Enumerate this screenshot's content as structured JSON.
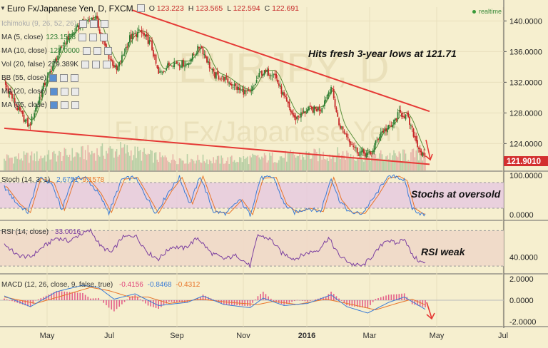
{
  "header": {
    "title": "Euro Fx/Japanese Yen, D, FXCM",
    "ohlc": [
      {
        "k": "O",
        "v": "123.223"
      },
      {
        "k": "H",
        "v": "123.565"
      },
      {
        "k": "L",
        "v": "122.594"
      },
      {
        "k": "C",
        "v": "122.691"
      }
    ],
    "realtime_label": "realtime"
  },
  "legend": [
    {
      "label": "Ichimoku (9, 26, 52, 26)",
      "value": ""
    },
    {
      "label": "MA (5, close)",
      "value": "123.1558"
    },
    {
      "label": "MA (10, close)",
      "value": "123.0000"
    },
    {
      "label": "Vol (20, false)",
      "value": "279.389K"
    },
    {
      "label": "BB (55, close)",
      "value": ""
    },
    {
      "label": "MA (20, close)",
      "value": ""
    },
    {
      "label": "MA (55, close)",
      "value": ""
    }
  ],
  "watermark": [
    "EURJPY, D",
    "Euro Fx/Japanese Yen"
  ],
  "colors": {
    "bg": "#f6efcf",
    "up": "#2e7d32",
    "down": "#c62828",
    "trend": "#e53935",
    "stoch": "#3a7bd5",
    "rsi": "#7b3fa0",
    "price_tag": "#d32f2f",
    "ma": "#5a8f3a"
  },
  "chart_data": [
    {
      "type": "candlestick",
      "title": "Euro Fx/Japanese Yen, D, FXCM",
      "x_labels": [
        "May",
        "Jul",
        "Sep",
        "Nov",
        "2016",
        "Mar",
        "May",
        "Jul"
      ],
      "y_ticks": [
        "140.0000",
        "136.0000",
        "132.0000",
        "128.0000",
        "124.0000"
      ],
      "ylim": [
        120.5,
        141.8
      ],
      "last_price": "121.9010",
      "points": [
        {
          "t": 0,
          "v": 132.0
        },
        {
          "t": 10,
          "v": 128.6
        },
        {
          "t": 19,
          "v": 126.2
        },
        {
          "t": 30,
          "v": 131.5
        },
        {
          "t": 45,
          "v": 137.0
        },
        {
          "t": 60,
          "v": 139.8
        },
        {
          "t": 70,
          "v": 140.4
        },
        {
          "t": 78,
          "v": 136.0
        },
        {
          "t": 86,
          "v": 133.5
        },
        {
          "t": 96,
          "v": 137.8
        },
        {
          "t": 104,
          "v": 138.6
        },
        {
          "t": 112,
          "v": 137.0
        },
        {
          "t": 118,
          "v": 133.0
        },
        {
          "t": 128,
          "v": 134.6
        },
        {
          "t": 140,
          "v": 134.4
        },
        {
          "t": 150,
          "v": 136.8
        },
        {
          "t": 160,
          "v": 133.0
        },
        {
          "t": 168,
          "v": 132.5
        },
        {
          "t": 180,
          "v": 131.0
        },
        {
          "t": 188,
          "v": 130.5
        },
        {
          "t": 196,
          "v": 133.2
        },
        {
          "t": 206,
          "v": 133.3
        },
        {
          "t": 214,
          "v": 130.0
        },
        {
          "t": 222,
          "v": 127.2
        },
        {
          "t": 232,
          "v": 128.4
        },
        {
          "t": 242,
          "v": 128.5
        },
        {
          "t": 250,
          "v": 131.5
        },
        {
          "t": 256,
          "v": 126.5
        },
        {
          "t": 262,
          "v": 125.0
        },
        {
          "t": 270,
          "v": 123.0
        },
        {
          "t": 280,
          "v": 122.5
        },
        {
          "t": 288,
          "v": 125.5
        },
        {
          "t": 296,
          "v": 126.2
        },
        {
          "t": 302,
          "v": 128.0
        },
        {
          "t": 308,
          "v": 127.5
        },
        {
          "t": 314,
          "v": 124.8
        },
        {
          "t": 318,
          "v": 123.0
        },
        {
          "t": 322,
          "v": 121.9
        }
      ],
      "volume_profile": [
        {
          "t": 0,
          "v": 0.3
        },
        {
          "t": 35,
          "v": 0.35
        },
        {
          "t": 90,
          "v": 0.5
        },
        {
          "t": 120,
          "v": 0.3
        },
        {
          "t": 170,
          "v": 0.25
        },
        {
          "t": 220,
          "v": 0.35
        },
        {
          "t": 260,
          "v": 0.4
        },
        {
          "t": 300,
          "v": 0.35
        },
        {
          "t": 322,
          "v": 0.4
        }
      ],
      "trendlines": [
        {
          "name": "resistance",
          "from": {
            "t": 98,
            "v": 141.4
          },
          "to": {
            "t": 322,
            "v": 128.2
          }
        },
        {
          "name": "support",
          "from": {
            "t": 0,
            "v": 126.0
          },
          "to": {
            "t": 322,
            "v": 121.3
          }
        }
      ],
      "annotations": [
        "Hits fresh 3-year lows at 121.71"
      ]
    },
    {
      "type": "line",
      "title": "Stoch (14, 3, 1)",
      "values_label": [
        "2.6751",
        "9.1578"
      ],
      "y_ticks": [
        "100.0000",
        "0.0000"
      ],
      "ylim": [
        -5,
        105
      ],
      "band": [
        20,
        80
      ],
      "k_points": [
        {
          "t": 0,
          "v": 70
        },
        {
          "t": 10,
          "v": 30
        },
        {
          "t": 18,
          "v": 10
        },
        {
          "t": 26,
          "v": 90
        },
        {
          "t": 36,
          "v": 80
        },
        {
          "t": 44,
          "v": 15
        },
        {
          "t": 52,
          "v": 88
        },
        {
          "t": 62,
          "v": 92
        },
        {
          "t": 72,
          "v": 55
        },
        {
          "t": 80,
          "v": 10
        },
        {
          "t": 90,
          "v": 88
        },
        {
          "t": 100,
          "v": 92
        },
        {
          "t": 110,
          "v": 40
        },
        {
          "t": 116,
          "v": 8
        },
        {
          "t": 126,
          "v": 60
        },
        {
          "t": 134,
          "v": 92
        },
        {
          "t": 142,
          "v": 30
        },
        {
          "t": 150,
          "v": 95
        },
        {
          "t": 160,
          "v": 12
        },
        {
          "t": 170,
          "v": 8
        },
        {
          "t": 180,
          "v": 40
        },
        {
          "t": 188,
          "v": 5
        },
        {
          "t": 196,
          "v": 90
        },
        {
          "t": 206,
          "v": 92
        },
        {
          "t": 214,
          "v": 30
        },
        {
          "t": 222,
          "v": 10
        },
        {
          "t": 232,
          "v": 20
        },
        {
          "t": 242,
          "v": 12
        },
        {
          "t": 250,
          "v": 92
        },
        {
          "t": 256,
          "v": 40
        },
        {
          "t": 264,
          "v": 10
        },
        {
          "t": 274,
          "v": 8
        },
        {
          "t": 284,
          "v": 50
        },
        {
          "t": 292,
          "v": 90
        },
        {
          "t": 300,
          "v": 95
        },
        {
          "t": 306,
          "v": 85
        },
        {
          "t": 312,
          "v": 20
        },
        {
          "t": 318,
          "v": 8
        },
        {
          "t": 322,
          "v": 3
        }
      ],
      "annotations": [
        "Stochs at oversold"
      ]
    },
    {
      "type": "line",
      "title": "RSI (14, close)",
      "value_label": "33.0016",
      "y_ticks": [
        "40.0000"
      ],
      "ylim": [
        22,
        80
      ],
      "band": [
        30,
        70
      ],
      "points": [
        {
          "t": 0,
          "v": 55
        },
        {
          "t": 10,
          "v": 42
        },
        {
          "t": 20,
          "v": 40
        },
        {
          "t": 30,
          "v": 52
        },
        {
          "t": 40,
          "v": 62
        },
        {
          "t": 50,
          "v": 58
        },
        {
          "t": 58,
          "v": 66
        },
        {
          "t": 66,
          "v": 70
        },
        {
          "t": 74,
          "v": 52
        },
        {
          "t": 82,
          "v": 45
        },
        {
          "t": 90,
          "v": 62
        },
        {
          "t": 100,
          "v": 65
        },
        {
          "t": 110,
          "v": 45
        },
        {
          "t": 118,
          "v": 38
        },
        {
          "t": 128,
          "v": 52
        },
        {
          "t": 138,
          "v": 50
        },
        {
          "t": 148,
          "v": 62
        },
        {
          "t": 158,
          "v": 45
        },
        {
          "t": 168,
          "v": 38
        },
        {
          "t": 178,
          "v": 42
        },
        {
          "t": 188,
          "v": 30
        },
        {
          "t": 194,
          "v": 65
        },
        {
          "t": 204,
          "v": 60
        },
        {
          "t": 212,
          "v": 45
        },
        {
          "t": 222,
          "v": 38
        },
        {
          "t": 232,
          "v": 45
        },
        {
          "t": 240,
          "v": 48
        },
        {
          "t": 248,
          "v": 62
        },
        {
          "t": 256,
          "v": 42
        },
        {
          "t": 266,
          "v": 32
        },
        {
          "t": 274,
          "v": 30
        },
        {
          "t": 284,
          "v": 45
        },
        {
          "t": 292,
          "v": 60
        },
        {
          "t": 300,
          "v": 55
        },
        {
          "t": 306,
          "v": 62
        },
        {
          "t": 312,
          "v": 42
        },
        {
          "t": 318,
          "v": 35
        },
        {
          "t": 322,
          "v": 33
        }
      ],
      "annotations": [
        "RSI weak"
      ]
    },
    {
      "type": "bar",
      "title": "MACD (12, 26, close, 9, false, true)",
      "values_label": [
        "-0.4156",
        "-0.8468",
        "-0.4312"
      ],
      "y_ticks": [
        "2.0000",
        "0.0000",
        "-2.0000"
      ],
      "ylim": [
        -2.4,
        2.4
      ],
      "macd_points": [
        {
          "t": 0,
          "v": 0.4
        },
        {
          "t": 20,
          "v": -0.6
        },
        {
          "t": 40,
          "v": 0.8
        },
        {
          "t": 60,
          "v": 1.4
        },
        {
          "t": 72,
          "v": 1.2
        },
        {
          "t": 84,
          "v": 0.1
        },
        {
          "t": 100,
          "v": 0.6
        },
        {
          "t": 118,
          "v": -0.5
        },
        {
          "t": 140,
          "v": -0.2
        },
        {
          "t": 152,
          "v": 0.4
        },
        {
          "t": 168,
          "v": -0.4
        },
        {
          "t": 188,
          "v": -0.7
        },
        {
          "t": 198,
          "v": 0.2
        },
        {
          "t": 214,
          "v": -0.5
        },
        {
          "t": 232,
          "v": -0.3
        },
        {
          "t": 250,
          "v": 0.5
        },
        {
          "t": 262,
          "v": -0.6
        },
        {
          "t": 278,
          "v": -1.2
        },
        {
          "t": 294,
          "v": -0.2
        },
        {
          "t": 306,
          "v": 0.3
        },
        {
          "t": 322,
          "v": -0.85
        }
      ],
      "signal_points": [
        {
          "t": 0,
          "v": 0.3
        },
        {
          "t": 24,
          "v": -0.3
        },
        {
          "t": 44,
          "v": 0.4
        },
        {
          "t": 66,
          "v": 1.2
        },
        {
          "t": 80,
          "v": 0.9
        },
        {
          "t": 96,
          "v": 0.3
        },
        {
          "t": 110,
          "v": 0.3
        },
        {
          "t": 126,
          "v": -0.3
        },
        {
          "t": 150,
          "v": 0.1
        },
        {
          "t": 172,
          "v": -0.2
        },
        {
          "t": 194,
          "v": -0.4
        },
        {
          "t": 206,
          "v": -0.1
        },
        {
          "t": 224,
          "v": -0.4
        },
        {
          "t": 246,
          "v": 0.1
        },
        {
          "t": 266,
          "v": -0.4
        },
        {
          "t": 284,
          "v": -0.9
        },
        {
          "t": 300,
          "v": -0.3
        },
        {
          "t": 312,
          "v": 0.1
        },
        {
          "t": 322,
          "v": -0.43
        }
      ]
    }
  ]
}
